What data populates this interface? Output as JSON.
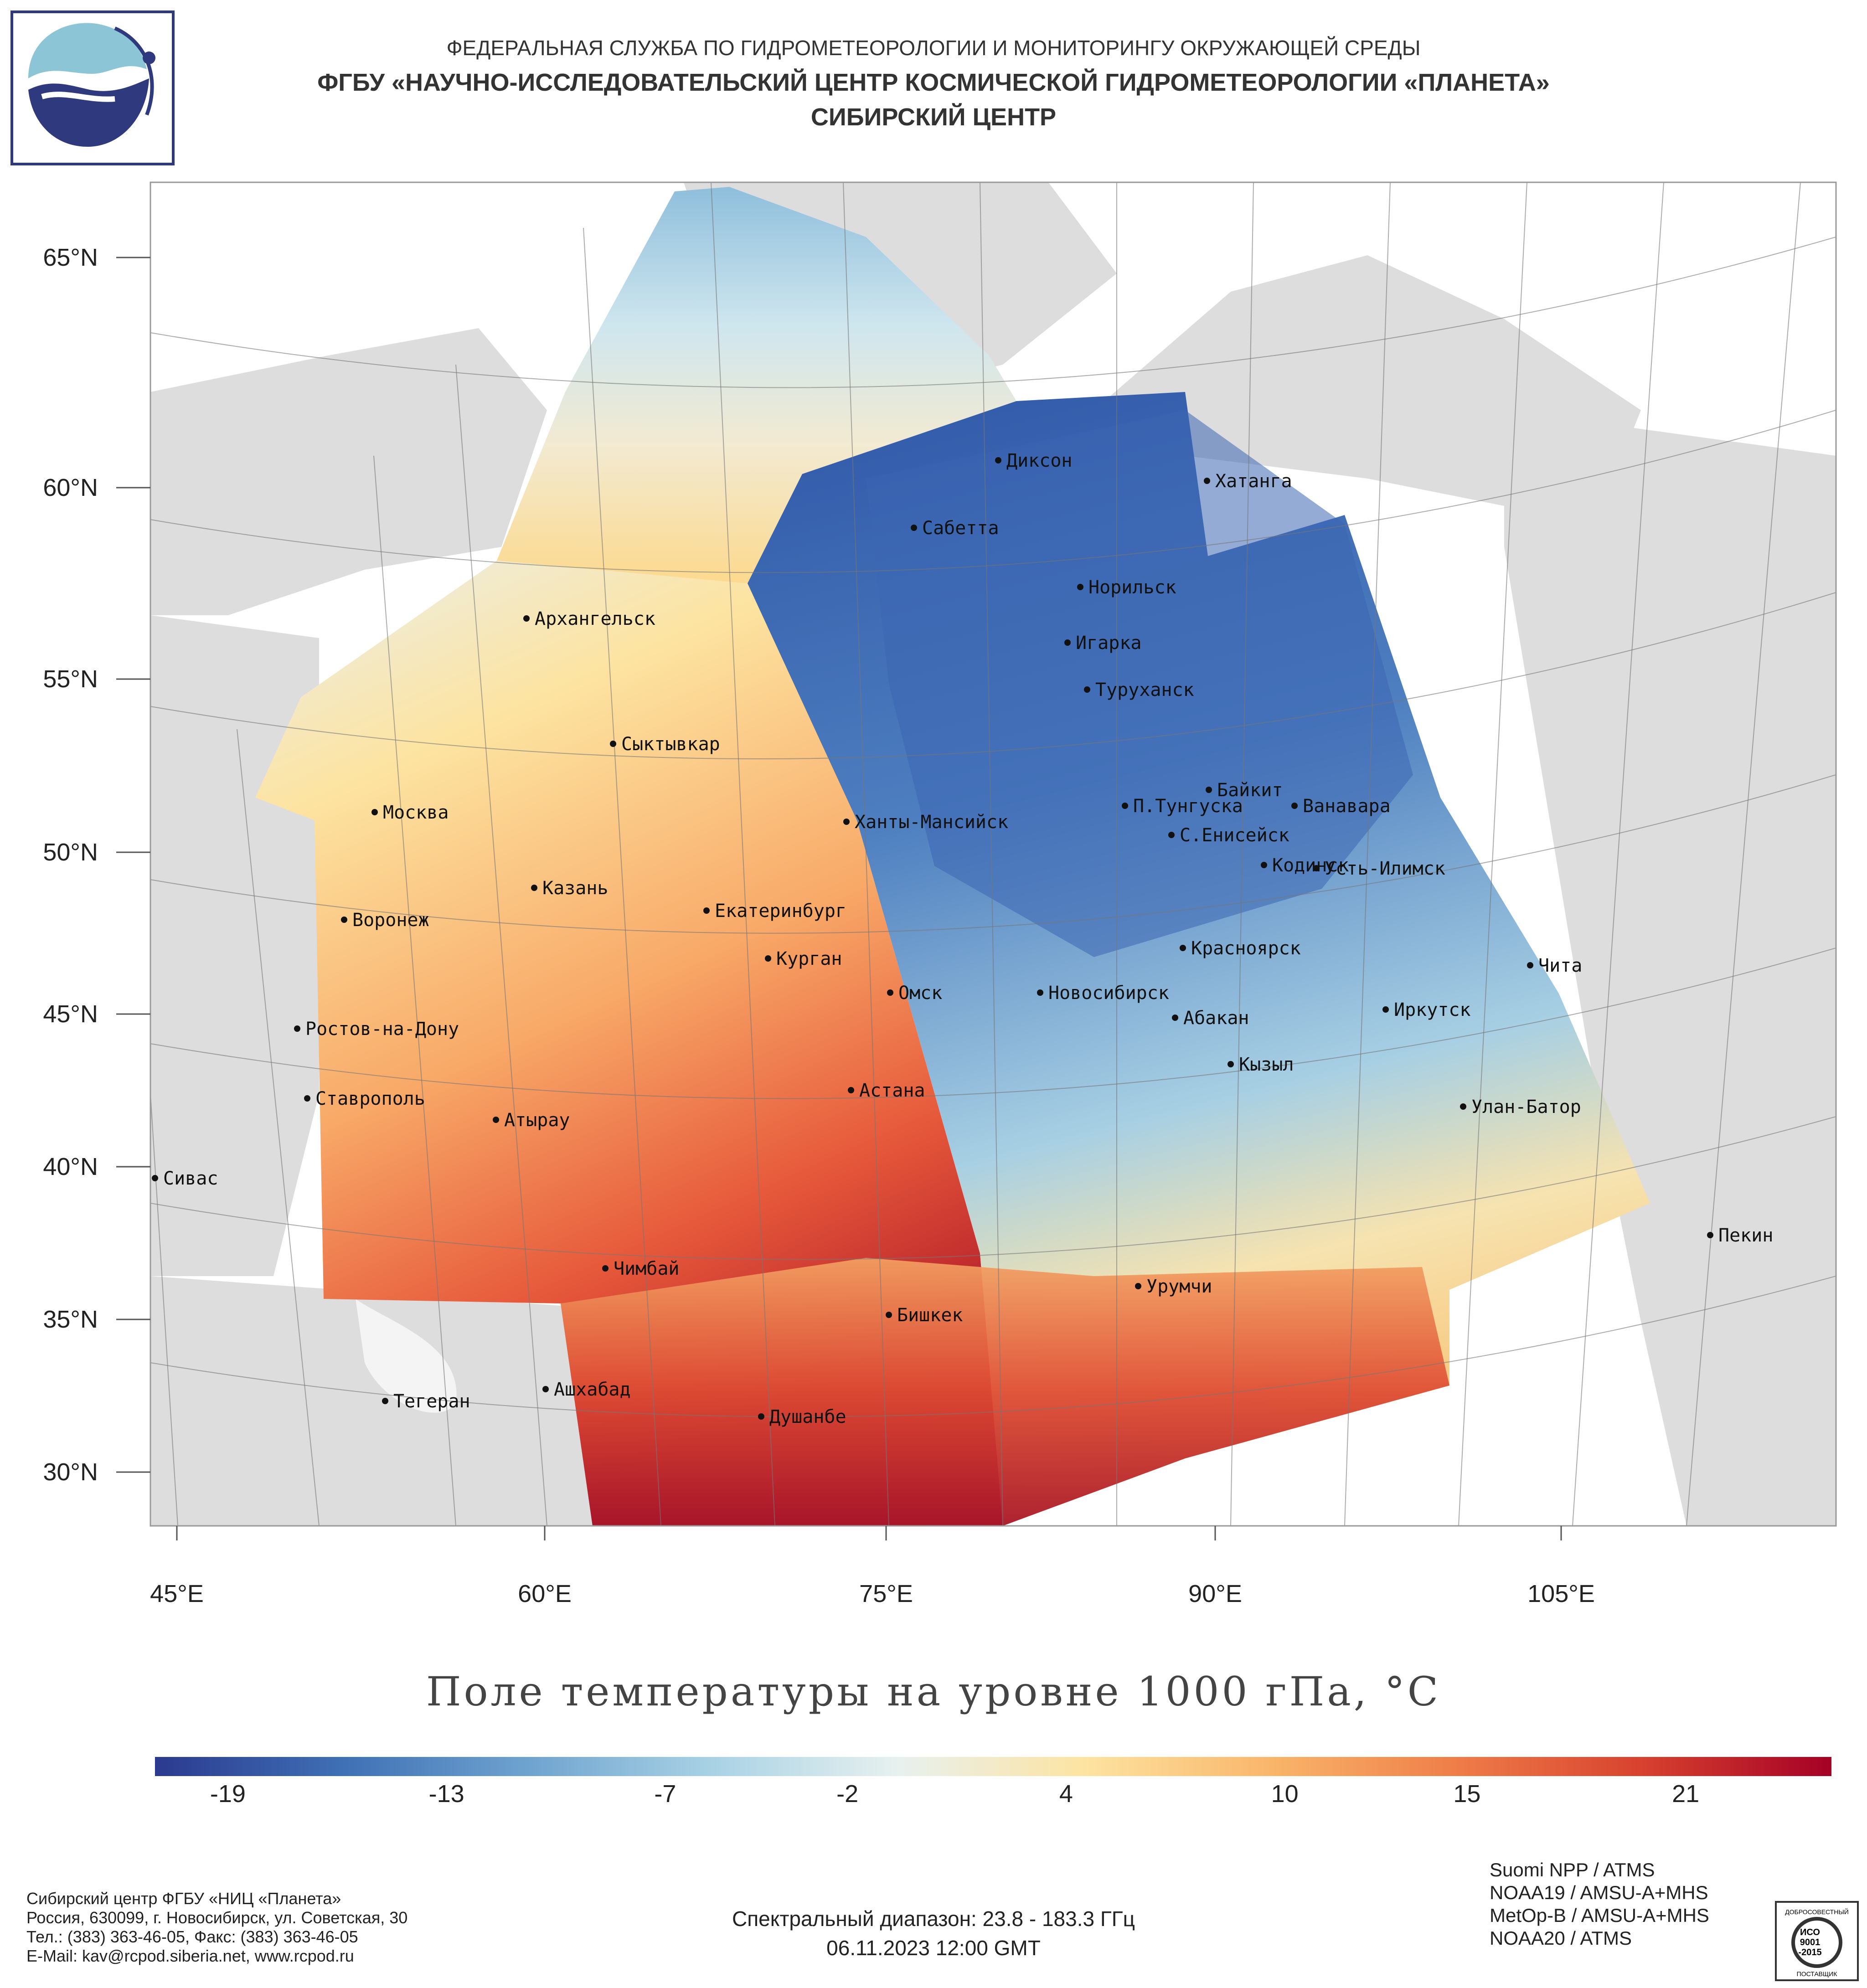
{
  "header": {
    "line1": "ФЕДЕРАЛЬНАЯ СЛУЖБА ПО ГИДРОМЕТЕОРОЛОГИИ И МОНИТОРИНГУ ОКРУЖАЮЩЕЙ СРЕДЫ",
    "line2": "ФГБУ «НАУЧНО-ИССЛЕДОВАТЕЛЬСКИЙ ЦЕНТР КОСМИЧЕСКОЙ ГИДРОМЕТЕОРОЛОГИИ «ПЛАНЕТА»",
    "line3": "СИБИРСКИЙ ЦЕНТР"
  },
  "map": {
    "lat_labels": [
      "65°N",
      "60°N",
      "55°N",
      "50°N",
      "45°N",
      "40°N",
      "35°N",
      "30°N"
    ],
    "lon_labels": [
      "45°E",
      "60°E",
      "75°E",
      "90°E",
      "105°E"
    ],
    "cities": [
      "Диксон",
      "Хатанга",
      "Сабетта",
      "Норильск",
      "Архангельск",
      "Игарка",
      "Туруханск",
      "Сыктывкар",
      "Байкит",
      "Москва",
      "П.Тунгуска",
      "Ванавара",
      "Ханты-Мансийск",
      "С.Енисейск",
      "Кодинск",
      "Усть-Илимск",
      "Казань",
      "Екатеринбург",
      "Воронеж",
      "Красноярск",
      "Курган",
      "Чита",
      "Омск",
      "Новосибирск",
      "Ростов-на-Дону",
      "Иркутск",
      "Абакан",
      "Кызыл",
      "Астана",
      "Ставрополь",
      "Улан-Батор",
      "Атырау",
      "Сивас",
      "Пекин",
      "Чимбай",
      "Урумчи",
      "Бишкек",
      "Ашхабад",
      "Тегеран",
      "Душанбе"
    ]
  },
  "caption": "Поле температуры на уровне 1000 гПа, °С",
  "colorbar": {
    "ticks": [
      "-19",
      "-13",
      "-7",
      "-2",
      "4",
      "10",
      "15",
      "21"
    ],
    "min": -21,
    "max": 25,
    "colors": [
      "#2b3a8f",
      "#3f6fb5",
      "#6fa3cf",
      "#a9d2e5",
      "#e8f1ef",
      "#fde3a0",
      "#f9b56a",
      "#ef7c48",
      "#d7402e",
      "#a50026"
    ]
  },
  "footer": {
    "org_lines": [
      "Сибирский центр ФГБУ «НИЦ «Планета»",
      "Россия, 630099, г. Новосибирск, ул. Советская, 30",
      "Тел.: (383) 363-46-05, Факс: (383) 363-46-05",
      "E-Mail: kav@rcpod.siberia.net, www.rcpod.ru"
    ],
    "spectral": "Спектральный диапазон: 23.8 - 183.3 ГГц",
    "datetime": "06.11.2023 12:00 GMT",
    "instruments": [
      "Suomi NPP / ATMS",
      "NOAA19 / AMSU-A+MHS",
      "MetOp-B / AMSU-A+MHS",
      "NOAA20 / ATMS"
    ],
    "iso_text": [
      "ДОБРОСОВЕСТНЫЙ",
      "ИСО",
      "9001",
      "-2015",
      "ПОСТАВЩИК"
    ]
  }
}
